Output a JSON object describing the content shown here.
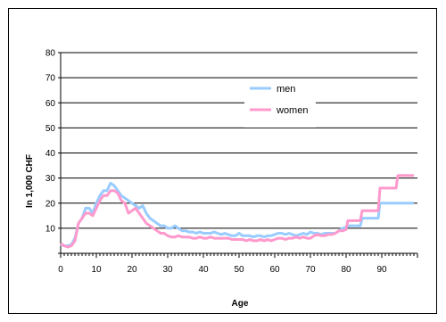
{
  "chart_data": {
    "type": "line",
    "xlabel": "Age",
    "ylabel": "In 1,000 CHF",
    "xlim": [
      0,
      100
    ],
    "ylim": [
      0,
      80
    ],
    "xticks": [
      "0",
      "10",
      "20",
      "30",
      "40",
      "50",
      "60",
      "70",
      "80",
      "90"
    ],
    "yticks": [
      "10",
      "20",
      "30",
      "40",
      "50",
      "60",
      "70",
      "80"
    ],
    "grid": true,
    "legend_position": "center",
    "series": [
      {
        "name": "men",
        "color": "#99ccff",
        "points": [
          [
            0,
            3.5
          ],
          [
            1,
            3
          ],
          [
            2,
            3
          ],
          [
            3,
            3.5
          ],
          [
            4,
            6
          ],
          [
            5,
            12
          ],
          [
            6,
            14
          ],
          [
            7,
            18
          ],
          [
            8,
            18
          ],
          [
            9,
            16
          ],
          [
            10,
            20
          ],
          [
            11,
            23
          ],
          [
            12,
            25
          ],
          [
            13,
            25
          ],
          [
            14,
            28
          ],
          [
            15,
            27
          ],
          [
            16,
            25
          ],
          [
            17,
            23
          ],
          [
            18,
            22
          ],
          [
            19,
            21
          ],
          [
            20,
            20
          ],
          [
            21,
            19
          ],
          [
            22,
            18
          ],
          [
            23,
            19
          ],
          [
            24,
            16
          ],
          [
            25,
            14
          ],
          [
            26,
            13
          ],
          [
            27,
            12
          ],
          [
            28,
            11
          ],
          [
            29,
            11
          ],
          [
            30,
            10
          ],
          [
            31,
            10
          ],
          [
            32,
            11
          ],
          [
            33,
            10
          ],
          [
            34,
            9
          ],
          [
            35,
            9
          ],
          [
            36,
            8.5
          ],
          [
            37,
            8.5
          ],
          [
            38,
            8
          ],
          [
            39,
            8.5
          ],
          [
            40,
            8
          ],
          [
            41,
            8
          ],
          [
            42,
            8
          ],
          [
            43,
            8.5
          ],
          [
            44,
            8
          ],
          [
            45,
            7.5
          ],
          [
            46,
            8
          ],
          [
            47,
            7.5
          ],
          [
            48,
            7
          ],
          [
            49,
            7
          ],
          [
            50,
            8
          ],
          [
            51,
            7
          ],
          [
            52,
            7
          ],
          [
            53,
            7
          ],
          [
            54,
            6.5
          ],
          [
            55,
            7
          ],
          [
            56,
            7
          ],
          [
            57,
            6.5
          ],
          [
            58,
            7
          ],
          [
            59,
            7
          ],
          [
            60,
            7.5
          ],
          [
            61,
            8
          ],
          [
            62,
            8
          ],
          [
            63,
            7.5
          ],
          [
            64,
            8
          ],
          [
            65,
            7.5
          ],
          [
            66,
            7
          ],
          [
            67,
            7.5
          ],
          [
            68,
            8
          ],
          [
            69,
            7.5
          ],
          [
            70,
            8.5
          ],
          [
            71,
            8
          ],
          [
            72,
            8
          ],
          [
            73,
            7.5
          ],
          [
            74,
            8
          ],
          [
            75,
            8
          ],
          [
            76,
            8
          ],
          [
            77,
            8
          ],
          [
            78,
            9
          ],
          [
            79,
            10
          ],
          [
            80,
            10.5
          ],
          [
            81,
            11
          ],
          [
            84,
            11
          ],
          [
            84.5,
            14
          ],
          [
            89,
            14
          ],
          [
            89.5,
            20
          ],
          [
            99,
            20
          ]
        ]
      },
      {
        "name": "women",
        "color": "#ff99cc",
        "points": [
          [
            0,
            4
          ],
          [
            1,
            3
          ],
          [
            2,
            2.5
          ],
          [
            3,
            3
          ],
          [
            4,
            5
          ],
          [
            5,
            12
          ],
          [
            6,
            14
          ],
          [
            7,
            16
          ],
          [
            8,
            16
          ],
          [
            9,
            15
          ],
          [
            10,
            18
          ],
          [
            11,
            21
          ],
          [
            12,
            23
          ],
          [
            13,
            23
          ],
          [
            14,
            25
          ],
          [
            15,
            25
          ],
          [
            16,
            24
          ],
          [
            17,
            21
          ],
          [
            18,
            20
          ],
          [
            19,
            16
          ],
          [
            20,
            17
          ],
          [
            21,
            18
          ],
          [
            22,
            16
          ],
          [
            23,
            14
          ],
          [
            24,
            12
          ],
          [
            25,
            11
          ],
          [
            26,
            10
          ],
          [
            27,
            9
          ],
          [
            28,
            8
          ],
          [
            29,
            8
          ],
          [
            30,
            7
          ],
          [
            31,
            6.5
          ],
          [
            32,
            6.5
          ],
          [
            33,
            7
          ],
          [
            34,
            6.5
          ],
          [
            35,
            6.5
          ],
          [
            36,
            6.5
          ],
          [
            37,
            6
          ],
          [
            38,
            6
          ],
          [
            39,
            6.5
          ],
          [
            40,
            6
          ],
          [
            41,
            6
          ],
          [
            42,
            6.5
          ],
          [
            43,
            6
          ],
          [
            44,
            6
          ],
          [
            45,
            6
          ],
          [
            46,
            6
          ],
          [
            47,
            6
          ],
          [
            48,
            5.5
          ],
          [
            49,
            5.5
          ],
          [
            50,
            5.5
          ],
          [
            51,
            5.5
          ],
          [
            52,
            5
          ],
          [
            53,
            5.5
          ],
          [
            54,
            5
          ],
          [
            55,
            5
          ],
          [
            56,
            5.5
          ],
          [
            57,
            5
          ],
          [
            58,
            5.5
          ],
          [
            59,
            5
          ],
          [
            60,
            5.5
          ],
          [
            61,
            6
          ],
          [
            62,
            6
          ],
          [
            63,
            5.5
          ],
          [
            64,
            6
          ],
          [
            65,
            6
          ],
          [
            66,
            6.5
          ],
          [
            67,
            6
          ],
          [
            68,
            6.5
          ],
          [
            69,
            6
          ],
          [
            70,
            6
          ],
          [
            71,
            7
          ],
          [
            72,
            7.5
          ],
          [
            73,
            7
          ],
          [
            74,
            7
          ],
          [
            75,
            7.5
          ],
          [
            76,
            7.5
          ],
          [
            77,
            8
          ],
          [
            78,
            9
          ],
          [
            79,
            9
          ],
          [
            80,
            9.5
          ],
          [
            80.5,
            13
          ],
          [
            84,
            13
          ],
          [
            84.5,
            17
          ],
          [
            89,
            17
          ],
          [
            89.5,
            26
          ],
          [
            94,
            26
          ],
          [
            94.5,
            31
          ],
          [
            99,
            31
          ]
        ]
      }
    ]
  }
}
